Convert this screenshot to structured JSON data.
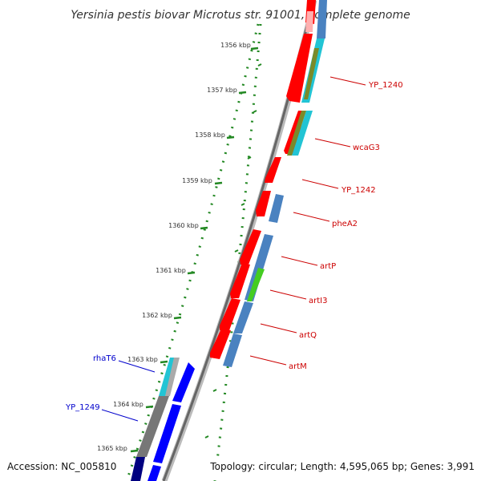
{
  "title": "Yersinia pestis biovar Microtus str. 91001, complete genome",
  "footer": {
    "accession": "Accession: NC_005810",
    "topology": "Topology: circular; Length: 4,595,065 bp; Genes: 3,991"
  },
  "ticks": [
    "1356 kbp",
    "1357 kbp",
    "1358 kbp",
    "1359 kbp",
    "1360 kbp",
    "1361 kbp",
    "1362 kbp",
    "1363 kbp",
    "1364 kbp",
    "1365 kbp"
  ],
  "gene_labels": [
    {
      "name": "YP_1240",
      "strand": "forward"
    },
    {
      "name": "wcaG3",
      "strand": "forward"
    },
    {
      "name": "YP_1242",
      "strand": "forward"
    },
    {
      "name": "pheA2",
      "strand": "forward"
    },
    {
      "name": "artP",
      "strand": "forward"
    },
    {
      "name": "artI3",
      "strand": "forward"
    },
    {
      "name": "artQ",
      "strand": "forward"
    },
    {
      "name": "artM",
      "strand": "forward"
    },
    {
      "name": "rhaT6",
      "strand": "reverse"
    },
    {
      "name": "YP_1249",
      "strand": "reverse"
    }
  ],
  "colors": {
    "forward_label": "#cc0000",
    "reverse_label": "#0000cc",
    "gene_forward": "#ff0000",
    "gene_reverse": "#0000ff",
    "cds_blue": "#4a82c0",
    "cds_cyan": "#22c4d4",
    "cds_olive": "#7a8a2a",
    "cds_green": "#44cc22",
    "cds_gray": "#777777",
    "backbone": "#888888",
    "tick_green": "#228822"
  }
}
